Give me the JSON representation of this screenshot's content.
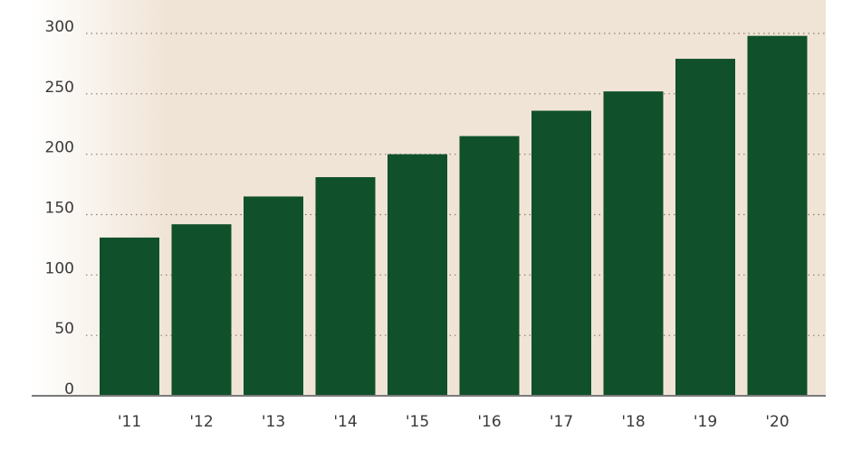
{
  "chart_data": {
    "type": "bar",
    "title": "",
    "xlabel": "",
    "ylabel": "",
    "categories": [
      "'11",
      "'12",
      "'13",
      "'14",
      "'15",
      "'16",
      "'17",
      "'18",
      "'19",
      "'20"
    ],
    "values": [
      131,
      142,
      165,
      181,
      200,
      215,
      236,
      252,
      279,
      298
    ],
    "ylim": [
      0,
      300
    ],
    "yticks": [
      0,
      50,
      100,
      150,
      200,
      250,
      300
    ],
    "grid": true,
    "grid_style": "dotted",
    "legend": "none",
    "colors": {
      "bar": "#10502b",
      "background": "#f0e4d6",
      "background_fade": "#ffffff",
      "grid": "#8c7d6e",
      "axis": "#7a7a7a"
    }
  }
}
